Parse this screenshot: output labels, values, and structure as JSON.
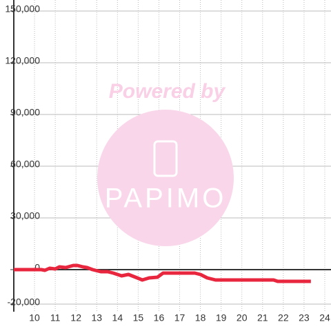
{
  "chart_data": {
    "type": "line",
    "watermark_top": "Powered by",
    "watermark_logo": "PAPIMO",
    "x": [
      9.0,
      10.33,
      10.5,
      10.73,
      11.0,
      11.2,
      11.5,
      11.87,
      12.07,
      12.33,
      12.53,
      12.8,
      13.2,
      13.53,
      13.8,
      14.2,
      14.53,
      14.87,
      15.2,
      15.53,
      15.93,
      16.2,
      17.73,
      18.0,
      18.33,
      18.73,
      19.33,
      21.53,
      21.73,
      23.33
    ],
    "series": [
      {
        "color": "#e8273f",
        "values": [
          0,
          0,
          -400,
          800,
          400,
          1600,
          1200,
          2400,
          2400,
          1600,
          1200,
          0,
          -1200,
          -1200,
          -2000,
          -3600,
          -2800,
          -4400,
          -6000,
          -4800,
          -4400,
          -2000,
          -2000,
          -2800,
          -4800,
          -6000,
          -6000,
          -6000,
          -6800,
          -6800
        ]
      }
    ],
    "xlim": [
      9,
      24.3
    ],
    "xticks": [
      10,
      11,
      12,
      13,
      14,
      15,
      16,
      17,
      18,
      19,
      20,
      21,
      22,
      23,
      24
    ],
    "ylim": [
      -20000,
      150000
    ],
    "yticks": [
      {
        "value": 150000,
        "label": "150,000"
      },
      {
        "value": 120000,
        "label": "120,000"
      },
      {
        "value": 90000,
        "label": "90,000"
      },
      {
        "value": 60000,
        "label": "60,000"
      },
      {
        "value": 30000,
        "label": "30,000"
      },
      {
        "value": 0,
        "label": "0"
      },
      {
        "value": -20000,
        "label": "-20,000"
      }
    ],
    "grid": true
  }
}
